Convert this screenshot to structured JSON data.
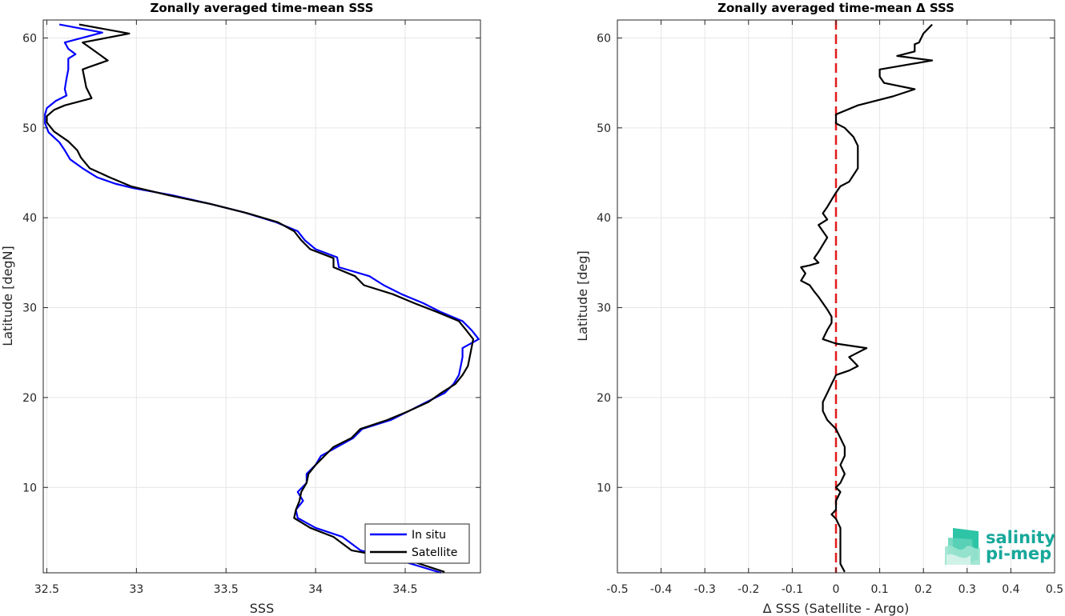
{
  "chart_data": [
    {
      "type": "line",
      "title": "Zonally averaged time-mean SSS",
      "xlabel": "SSS",
      "ylabel": "Latitude [degN]",
      "xlim": [
        32.48,
        34.92
      ],
      "ylim": [
        0.5,
        62
      ],
      "xticks": [
        32.5,
        33,
        33.5,
        34,
        34.5
      ],
      "xtick_labels": [
        "32.5",
        "33",
        "33.5",
        "34",
        "34.5"
      ],
      "yticks": [
        10,
        20,
        30,
        40,
        50,
        60
      ],
      "ytick_labels": [
        "10",
        "20",
        "30",
        "40",
        "50",
        "60"
      ],
      "grid": true,
      "legend": "bottom-right",
      "series": [
        {
          "name": "In situ",
          "color": "#0000ff",
          "points": [
            [
              32.57,
              61.5
            ],
            [
              32.81,
              60.6
            ],
            [
              32.6,
              59.5
            ],
            [
              32.62,
              58.8
            ],
            [
              32.66,
              58.2
            ],
            [
              32.62,
              57.7
            ],
            [
              32.62,
              56.5
            ],
            [
              32.61,
              55.5
            ],
            [
              32.6,
              54.3
            ],
            [
              32.61,
              53.6
            ],
            [
              32.55,
              53
            ],
            [
              32.5,
              52.2
            ],
            [
              32.49,
              51.5
            ],
            [
              32.49,
              50.5
            ],
            [
              32.51,
              49.5
            ],
            [
              32.57,
              48.4
            ],
            [
              32.6,
              47.5
            ],
            [
              32.63,
              46.5
            ],
            [
              32.7,
              45.5
            ],
            [
              32.78,
              44.5
            ],
            [
              32.88,
              43.8
            ],
            [
              32.98,
              43.3
            ],
            [
              33.2,
              42.5
            ],
            [
              33.4,
              41.6
            ],
            [
              33.6,
              40.6
            ],
            [
              33.78,
              39.5
            ],
            [
              33.9,
              38.5
            ],
            [
              33.94,
              37.5
            ],
            [
              34.0,
              36.5
            ],
            [
              34.12,
              35.6
            ],
            [
              34.13,
              34.5
            ],
            [
              34.3,
              33.5
            ],
            [
              34.38,
              32.5
            ],
            [
              34.48,
              31.5
            ],
            [
              34.6,
              30.5
            ],
            [
              34.7,
              29.5
            ],
            [
              34.82,
              28.5
            ],
            [
              34.87,
              27.5
            ],
            [
              34.91,
              26.5
            ],
            [
              34.82,
              25.5
            ],
            [
              34.82,
              24.5
            ],
            [
              34.81,
              23.5
            ],
            [
              34.8,
              22.5
            ],
            [
              34.77,
              21.5
            ],
            [
              34.72,
              20.5
            ],
            [
              34.62,
              19.5
            ],
            [
              34.52,
              18.5
            ],
            [
              34.42,
              17.5
            ],
            [
              34.26,
              16.5
            ],
            [
              34.21,
              15.5
            ],
            [
              34.12,
              14.5
            ],
            [
              34.03,
              13.5
            ],
            [
              34.0,
              12.5
            ],
            [
              33.95,
              11.5
            ],
            [
              33.95,
              10.5
            ],
            [
              33.9,
              9.5
            ],
            [
              33.93,
              8.5
            ],
            [
              33.89,
              7.5
            ],
            [
              33.9,
              6.6
            ],
            [
              34.0,
              5.5
            ],
            [
              34.15,
              4.5
            ],
            [
              34.25,
              3.0
            ],
            [
              34.5,
              1.7
            ],
            [
              34.7,
              0.5
            ]
          ]
        },
        {
          "name": "Satellite",
          "color": "#000000",
          "points": [
            [
              32.68,
              61.5
            ],
            [
              32.96,
              60.5
            ],
            [
              32.7,
              59.5
            ],
            [
              32.75,
              58.8
            ],
            [
              32.84,
              57.5
            ],
            [
              32.74,
              56.8
            ],
            [
              32.7,
              56.5
            ],
            [
              32.71,
              55.5
            ],
            [
              32.72,
              54.5
            ],
            [
              32.75,
              53.3
            ],
            [
              32.6,
              52.5
            ],
            [
              32.54,
              52
            ],
            [
              32.5,
              51.3
            ],
            [
              32.5,
              50.6
            ],
            [
              32.54,
              49.6
            ],
            [
              32.62,
              48.5
            ],
            [
              32.67,
              47.5
            ],
            [
              32.69,
              46.7
            ],
            [
              32.74,
              45.5
            ],
            [
              32.85,
              44.5
            ],
            [
              32.97,
              43.5
            ],
            [
              33.18,
              42.5
            ],
            [
              33.42,
              41.5
            ],
            [
              33.62,
              40.5
            ],
            [
              33.79,
              39.5
            ],
            [
              33.88,
              38.5
            ],
            [
              33.92,
              37.5
            ],
            [
              33.97,
              36.5
            ],
            [
              34.1,
              35.5
            ],
            [
              34.1,
              34.5
            ],
            [
              34.22,
              33.5
            ],
            [
              34.27,
              32.5
            ],
            [
              34.43,
              31.5
            ],
            [
              34.55,
              30.5
            ],
            [
              34.68,
              29.5
            ],
            [
              34.8,
              28.5
            ],
            [
              34.84,
              27.5
            ],
            [
              34.88,
              26.5
            ],
            [
              34.87,
              25.5
            ],
            [
              34.86,
              24.5
            ],
            [
              34.85,
              23.5
            ],
            [
              34.82,
              22.5
            ],
            [
              34.78,
              21.5
            ],
            [
              34.7,
              20.5
            ],
            [
              34.63,
              19.5
            ],
            [
              34.52,
              18.5
            ],
            [
              34.4,
              17.5
            ],
            [
              34.25,
              16.5
            ],
            [
              34.2,
              15.5
            ],
            [
              34.1,
              14.5
            ],
            [
              34.05,
              13.5
            ],
            [
              34.0,
              12.5
            ],
            [
              33.96,
              11.5
            ],
            [
              33.95,
              10.5
            ],
            [
              33.92,
              9.5
            ],
            [
              33.91,
              8.5
            ],
            [
              33.89,
              7.5
            ],
            [
              33.88,
              6.6
            ],
            [
              33.97,
              5.5
            ],
            [
              34.1,
              4.5
            ],
            [
              34.2,
              3.0
            ],
            [
              34.55,
              1.7
            ],
            [
              34.72,
              0.6
            ]
          ]
        }
      ]
    },
    {
      "type": "line",
      "title": "Zonally averaged time-mean Δ SSS",
      "xlabel": "Δ SSS (Satellite - Argo)",
      "ylabel": "Latitude [deg]",
      "xlim": [
        -0.5,
        0.5
      ],
      "ylim": [
        0.5,
        62
      ],
      "xticks": [
        -0.5,
        -0.4,
        -0.3,
        -0.2,
        -0.1,
        0,
        0.1,
        0.2,
        0.3,
        0.4,
        0.5
      ],
      "xtick_labels": [
        "-0.5",
        "-0.4",
        "-0.3",
        "-0.2",
        "-0.1",
        "0",
        "0.1",
        "0.2",
        "0.3",
        "0.4",
        "0.5"
      ],
      "yticks": [
        10,
        20,
        30,
        40,
        50,
        60
      ],
      "ytick_labels": [
        "10",
        "20",
        "30",
        "40",
        "50",
        "60"
      ],
      "grid": true,
      "reference_line": {
        "x": 0,
        "color": "#e41a1c",
        "style": "dashed"
      },
      "series": [
        {
          "color": "#000000",
          "points": [
            [
              0.22,
              61.5
            ],
            [
              0.2,
              60.5
            ],
            [
              0.19,
              59.5
            ],
            [
              0.18,
              59.3
            ],
            [
              0.18,
              58.5
            ],
            [
              0.14,
              58.0
            ],
            [
              0.22,
              57.5
            ],
            [
              0.1,
              56.5
            ],
            [
              0.1,
              55.7
            ],
            [
              0.11,
              55.0
            ],
            [
              0.18,
              54.3
            ],
            [
              0.13,
              53.5
            ],
            [
              0.05,
              52.5
            ],
            [
              0.0,
              51.5
            ],
            [
              0.0,
              50.5
            ],
            [
              0.02,
              50.0
            ],
            [
              0.04,
              49.0
            ],
            [
              0.05,
              48.0
            ],
            [
              0.05,
              47.3
            ],
            [
              0.05,
              46.5
            ],
            [
              0.05,
              45.5
            ],
            [
              0.03,
              44.0
            ],
            [
              0.01,
              43.5
            ],
            [
              0.0,
              42.8
            ],
            [
              -0.01,
              42.0
            ],
            [
              -0.02,
              41.2
            ],
            [
              -0.03,
              40.5
            ],
            [
              -0.02,
              39.8
            ],
            [
              -0.04,
              39.2
            ],
            [
              -0.03,
              38.5
            ],
            [
              -0.02,
              37.8
            ],
            [
              -0.03,
              37.0
            ],
            [
              -0.04,
              36.2
            ],
            [
              -0.05,
              35.5
            ],
            [
              -0.04,
              35.0
            ],
            [
              -0.06,
              34.7
            ],
            [
              -0.08,
              34.5
            ],
            [
              -0.07,
              33.8
            ],
            [
              -0.08,
              33.0
            ],
            [
              -0.06,
              32.5
            ],
            [
              -0.05,
              31.8
            ],
            [
              -0.04,
              31.2
            ],
            [
              -0.03,
              30.5
            ],
            [
              -0.02,
              29.8
            ],
            [
              -0.01,
              29.0
            ],
            [
              -0.01,
              28.3
            ],
            [
              -0.02,
              27.5
            ],
            [
              -0.03,
              26.5
            ],
            [
              0.0,
              26.0
            ],
            [
              0.07,
              25.5
            ],
            [
              0.05,
              25.0
            ],
            [
              0.03,
              24.5
            ],
            [
              0.05,
              23.5
            ],
            [
              0.03,
              23.0
            ],
            [
              0.0,
              22.5
            ],
            [
              -0.01,
              21.5
            ],
            [
              -0.02,
              20.5
            ],
            [
              -0.03,
              19.5
            ],
            [
              -0.03,
              18.5
            ],
            [
              -0.02,
              17.5
            ],
            [
              -0.01,
              17.0
            ],
            [
              0.0,
              16.5
            ],
            [
              0.01,
              15.5
            ],
            [
              0.02,
              14.5
            ],
            [
              0.02,
              13.5
            ],
            [
              0.01,
              12.5
            ],
            [
              0.02,
              11.5
            ],
            [
              0.01,
              10.5
            ],
            [
              0.0,
              10.0
            ],
            [
              0.01,
              9.5
            ],
            [
              0.0,
              8.5
            ],
            [
              0.0,
              7.5
            ],
            [
              -0.01,
              7.0
            ],
            [
              0.0,
              6.5
            ],
            [
              0.01,
              5.5
            ],
            [
              0.01,
              4.5
            ],
            [
              0.01,
              3.5
            ],
            [
              0.01,
              2.5
            ],
            [
              0.01,
              1.5
            ],
            [
              0.02,
              0.6
            ]
          ]
        }
      ]
    }
  ],
  "logo": {
    "line1": "salinity",
    "line2": "pi-mep"
  }
}
